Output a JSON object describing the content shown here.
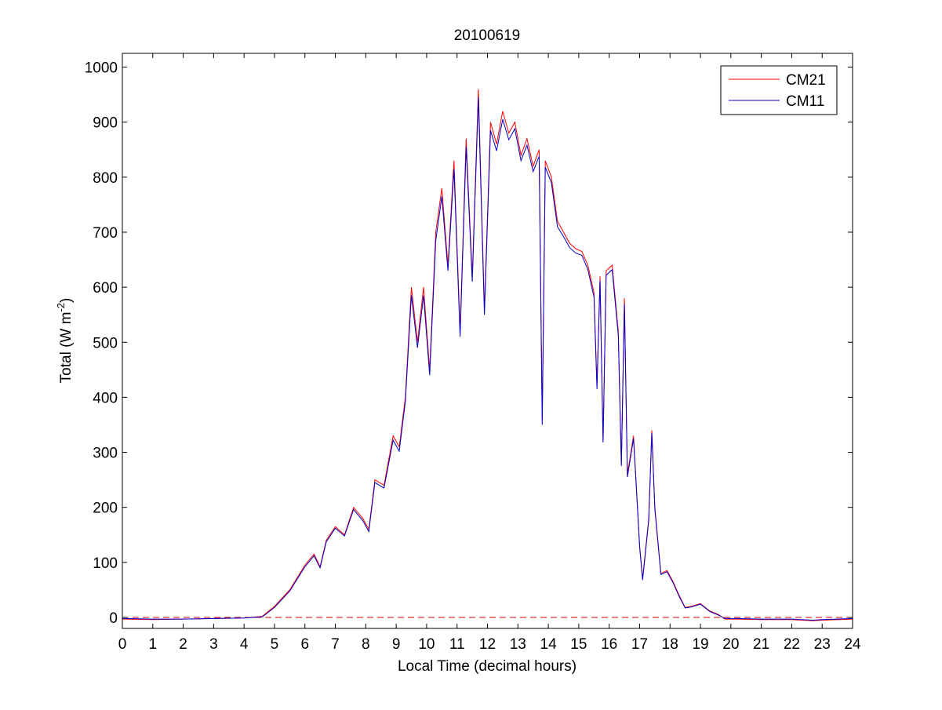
{
  "chart_data": {
    "type": "line",
    "title": "20100619",
    "xlabel": "Local Time (decimal hours)",
    "ylabel": {
      "prefix": "Total (W m",
      "superscript": "-2",
      "suffix": ")"
    },
    "xlim": [
      0,
      24
    ],
    "ylim": [
      -20,
      1025
    ],
    "xticks": [
      0,
      1,
      2,
      3,
      4,
      5,
      6,
      7,
      8,
      9,
      10,
      11,
      12,
      13,
      14,
      15,
      16,
      17,
      18,
      19,
      20,
      21,
      22,
      23,
      24
    ],
    "yticks": [
      0,
      100,
      200,
      300,
      400,
      500,
      600,
      700,
      800,
      900,
      1000
    ],
    "grid": false,
    "legend_position": "top-right",
    "reference_line": {
      "y": 0,
      "style": "dashed",
      "color": "#cc0000"
    },
    "series": [
      {
        "name": "CM21",
        "color": "#ff0000",
        "x": [
          0,
          1,
          2,
          3,
          4,
          4.6,
          5.0,
          5.5,
          6.0,
          6.3,
          6.5,
          6.7,
          7.0,
          7.3,
          7.6,
          7.9,
          8.1,
          8.3,
          8.6,
          8.9,
          9.1,
          9.3,
          9.5,
          9.7,
          9.9,
          10.1,
          10.3,
          10.5,
          10.7,
          10.9,
          11.1,
          11.3,
          11.5,
          11.7,
          11.9,
          12.1,
          12.3,
          12.5,
          12.7,
          12.9,
          13.1,
          13.3,
          13.5,
          13.7,
          13.8,
          13.9,
          14.1,
          14.3,
          14.5,
          14.7,
          14.9,
          15.1,
          15.3,
          15.5,
          15.6,
          15.7,
          15.8,
          15.9,
          16.1,
          16.3,
          16.4,
          16.5,
          16.6,
          16.8,
          16.9,
          17.0,
          17.1,
          17.3,
          17.4,
          17.5,
          17.7,
          17.9,
          18.1,
          18.3,
          18.5,
          18.7,
          19.0,
          19.3,
          19.6,
          19.8,
          20.2,
          21,
          22,
          22.7,
          23,
          24
        ],
        "y": [
          -3,
          -4,
          -3,
          -2,
          -1,
          2,
          20,
          50,
          95,
          115,
          92,
          140,
          165,
          150,
          200,
          180,
          160,
          250,
          240,
          330,
          310,
          400,
          600,
          500,
          600,
          450,
          700,
          780,
          640,
          830,
          520,
          870,
          620,
          960,
          560,
          900,
          860,
          920,
          880,
          900,
          840,
          870,
          820,
          850,
          360,
          830,
          800,
          720,
          700,
          680,
          670,
          665,
          640,
          590,
          420,
          620,
          320,
          630,
          640,
          520,
          280,
          580,
          260,
          330,
          230,
          130,
          70,
          180,
          340,
          200,
          80,
          85,
          65,
          40,
          18,
          20,
          25,
          12,
          5,
          -3,
          -3,
          -4,
          -4,
          -6,
          -5,
          -3
        ]
      },
      {
        "name": "CM11",
        "color": "#0000cc",
        "x": [
          0,
          1,
          2,
          3,
          4,
          4.6,
          5.0,
          5.5,
          6.0,
          6.3,
          6.5,
          6.7,
          7.0,
          7.3,
          7.6,
          7.9,
          8.1,
          8.3,
          8.6,
          8.9,
          9.1,
          9.3,
          9.5,
          9.7,
          9.9,
          10.1,
          10.3,
          10.5,
          10.7,
          10.9,
          11.1,
          11.3,
          11.5,
          11.7,
          11.9,
          12.1,
          12.3,
          12.5,
          12.7,
          12.9,
          13.1,
          13.3,
          13.5,
          13.7,
          13.8,
          13.9,
          14.1,
          14.3,
          14.5,
          14.7,
          14.9,
          15.1,
          15.3,
          15.5,
          15.6,
          15.7,
          15.8,
          15.9,
          16.1,
          16.3,
          16.4,
          16.5,
          16.6,
          16.8,
          16.9,
          17.0,
          17.1,
          17.3,
          17.4,
          17.5,
          17.7,
          17.9,
          18.1,
          18.3,
          18.5,
          18.7,
          19.0,
          19.3,
          19.6,
          19.8,
          20.2,
          21,
          22,
          22.7,
          23,
          24
        ],
        "y": [
          -2,
          -3,
          -3,
          -2,
          -1,
          1,
          18,
          48,
          92,
          112,
          90,
          137,
          162,
          148,
          196,
          176,
          156,
          245,
          235,
          322,
          302,
          392,
          585,
          490,
          585,
          440,
          685,
          765,
          630,
          815,
          510,
          855,
          610,
          945,
          550,
          885,
          848,
          905,
          868,
          888,
          830,
          858,
          810,
          838,
          350,
          818,
          790,
          710,
          692,
          672,
          662,
          658,
          632,
          582,
          415,
          612,
          318,
          622,
          632,
          512,
          275,
          570,
          255,
          325,
          228,
          128,
          68,
          176,
          335,
          196,
          78,
          83,
          63,
          38,
          17,
          19,
          24,
          11,
          4,
          -2,
          -2,
          -3,
          -3,
          -5,
          -4,
          -2
        ]
      }
    ]
  }
}
